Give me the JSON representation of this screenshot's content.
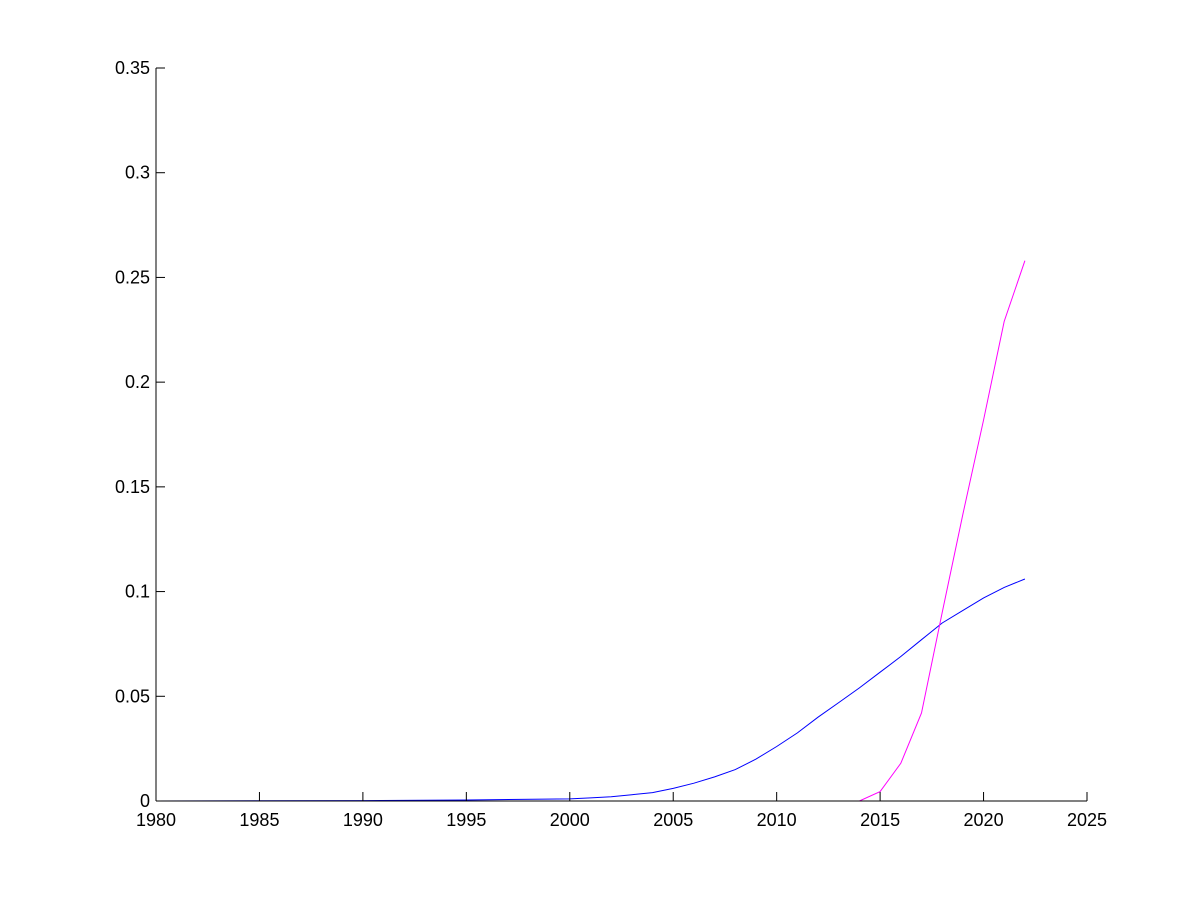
{
  "chart_data": {
    "type": "line",
    "title": "",
    "xlabel": "",
    "ylabel": "",
    "xlim": [
      1980,
      2025
    ],
    "ylim": [
      0,
      0.35
    ],
    "xticks": [
      "1980",
      "1985",
      "1990",
      "1995",
      "2000",
      "2005",
      "2010",
      "2015",
      "2020",
      "2025"
    ],
    "yticks": [
      "0",
      "0.05",
      "0.1",
      "0.15",
      "0.2",
      "0.25",
      "0.3",
      "0.35"
    ],
    "grid": false,
    "legend": "none",
    "series": [
      {
        "color": "#0000ff",
        "x": [
          1980,
          1985,
          1990,
          1995,
          2000,
          2001,
          2002,
          2003,
          2004,
          2005,
          2006,
          2007,
          2008,
          2009,
          2010,
          2011,
          2012,
          2013,
          2014,
          2015,
          2016,
          2017,
          2018,
          2019,
          2020,
          2021,
          2022
        ],
        "y": [
          0,
          0.0001,
          0.0002,
          0.0005,
          0.001,
          0.0015,
          0.002,
          0.003,
          0.004,
          0.006,
          0.0085,
          0.0115,
          0.015,
          0.02,
          0.026,
          0.0325,
          0.04,
          0.047,
          0.054,
          0.0615,
          0.069,
          0.077,
          0.085,
          0.091,
          0.097,
          0.102,
          0.106
        ]
      },
      {
        "color": "#ff00ff",
        "x": [
          1980,
          1990,
          2000,
          2010,
          2014,
          2015,
          2016,
          2017,
          2018,
          2019,
          2020,
          2021,
          2022
        ],
        "y": [
          0,
          0,
          0,
          0,
          0,
          0.0045,
          0.018,
          0.042,
          0.09,
          0.137,
          0.182,
          0.229,
          0.258
        ]
      }
    ]
  }
}
